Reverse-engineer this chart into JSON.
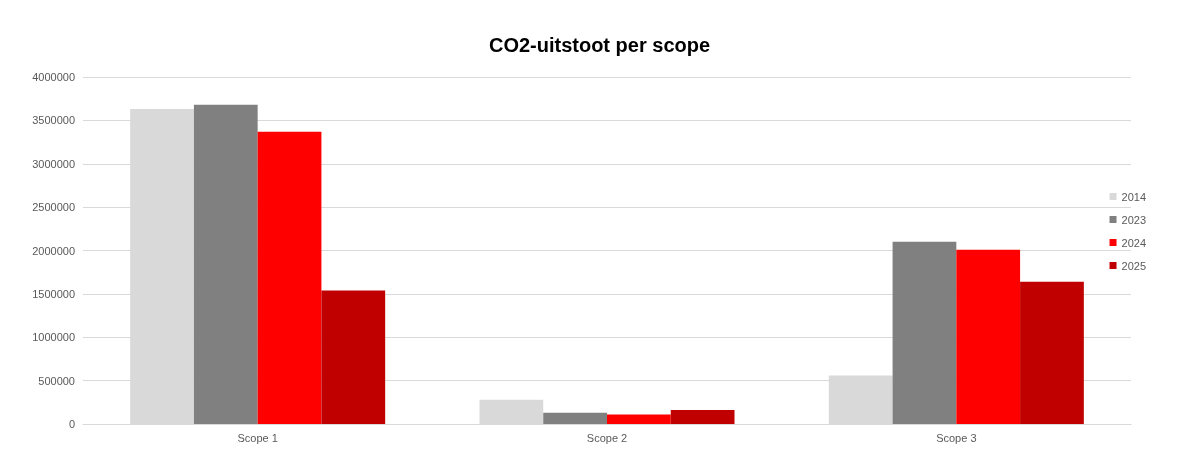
{
  "chart_data": {
    "type": "bar",
    "title": "CO2-uitstoot per scope",
    "categories": [
      "Scope 1",
      "Scope 2",
      "Scope 3"
    ],
    "series": [
      {
        "name": "2014",
        "color": "#d9d9d9",
        "values": [
          3630000,
          280000,
          560000
        ]
      },
      {
        "name": "2023",
        "color": "#808080",
        "values": [
          3680000,
          130000,
          2100000
        ]
      },
      {
        "name": "2024",
        "color": "#ff0000",
        "values": [
          3370000,
          110000,
          2010000
        ]
      },
      {
        "name": "2025",
        "color": "#c00000",
        "values": [
          1540000,
          160000,
          1640000
        ]
      }
    ],
    "ylim": [
      0,
      4000000
    ],
    "yticks": [
      0,
      500000,
      1000000,
      1500000,
      2000000,
      2500000,
      3000000,
      3500000,
      4000000
    ],
    "grid": "y",
    "legend": "right"
  }
}
